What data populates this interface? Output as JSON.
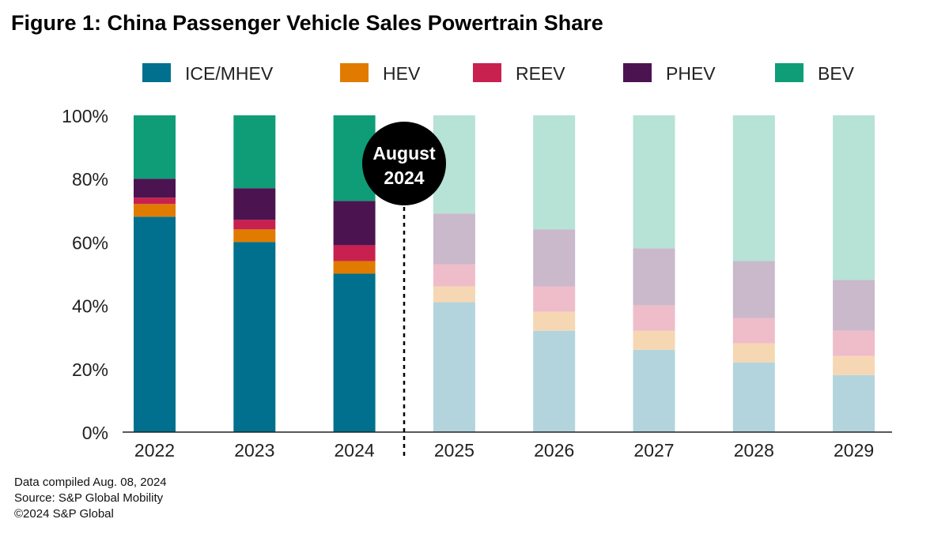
{
  "title": "Figure 1: China Passenger Vehicle Sales Powertrain Share",
  "chart_data": {
    "type": "bar",
    "stacked": true,
    "percent": true,
    "categories": [
      "2022",
      "2023",
      "2024",
      "2025",
      "2026",
      "2027",
      "2028",
      "2029"
    ],
    "historical_count": 3,
    "ylim": [
      0,
      100
    ],
    "yticks": [
      "0%",
      "20%",
      "40%",
      "60%",
      "80%",
      "100%"
    ],
    "ytick_values": [
      0,
      20,
      40,
      60,
      80,
      100
    ],
    "legend_position": "top",
    "series": [
      {
        "name": "ICE/MHEV",
        "color": "#00708e",
        "values": [
          68,
          60,
          50,
          41,
          32,
          26,
          22,
          18
        ]
      },
      {
        "name": "HEV",
        "color": "#e07b00",
        "values": [
          4,
          4,
          4,
          5,
          6,
          6,
          6,
          6
        ]
      },
      {
        "name": "REEV",
        "color": "#c8214f",
        "values": [
          2,
          3,
          5,
          7,
          8,
          8,
          8,
          8
        ]
      },
      {
        "name": "PHEV",
        "color": "#4b1450",
        "values": [
          6,
          10,
          14,
          16,
          18,
          18,
          18,
          16
        ]
      },
      {
        "name": "BEV",
        "color": "#0f9d77",
        "values": [
          20,
          23,
          27,
          31,
          36,
          42,
          46,
          52
        ]
      }
    ],
    "annotation": {
      "line1": "August",
      "line2": "2024"
    },
    "grid": false
  },
  "footer": {
    "line1": "Data compiled Aug. 08, 2024",
    "line2": "Source: S&P Global Mobility",
    "line3": "©2024 S&P Global"
  }
}
